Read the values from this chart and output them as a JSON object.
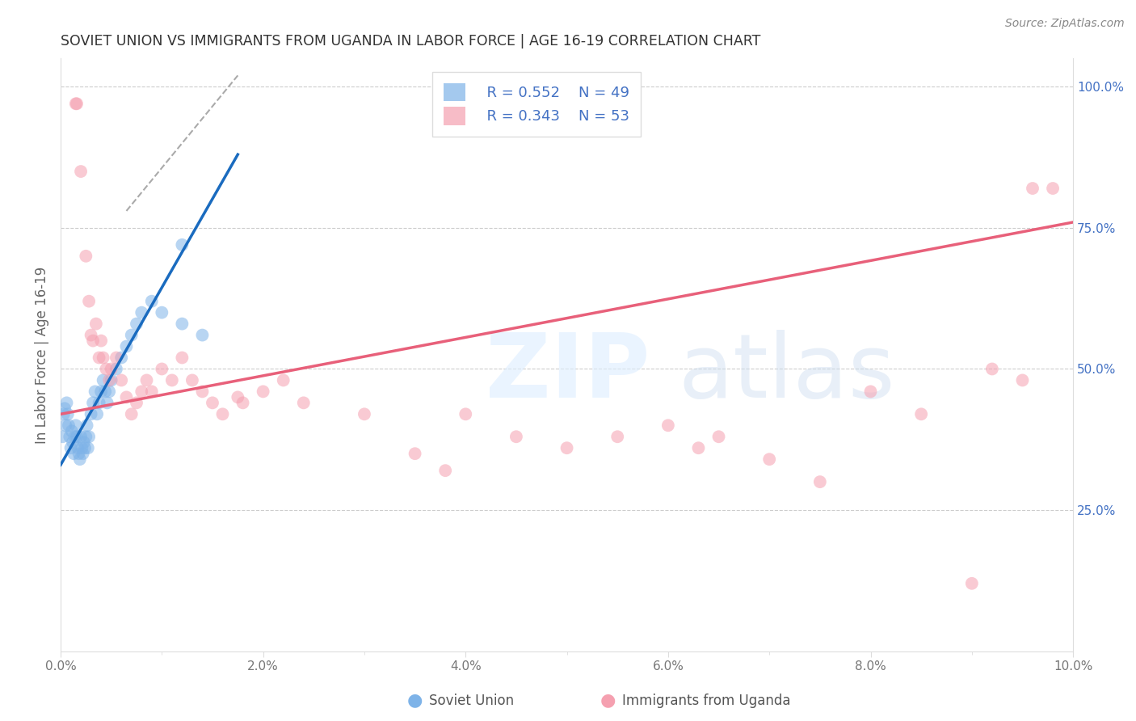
{
  "title": "SOVIET UNION VS IMMIGRANTS FROM UGANDA IN LABOR FORCE | AGE 16-19 CORRELATION CHART",
  "source": "Source: ZipAtlas.com",
  "ylabel": "In Labor Force | Age 16-19",
  "xlim": [
    0.0,
    0.1
  ],
  "ylim": [
    0.0,
    1.05
  ],
  "xticklabels": [
    "0.0%",
    "",
    "2.0%",
    "",
    "4.0%",
    "",
    "6.0%",
    "",
    "8.0%",
    "",
    "10.0%"
  ],
  "xtick_positions": [
    0.0,
    0.01,
    0.02,
    0.03,
    0.04,
    0.05,
    0.06,
    0.07,
    0.08,
    0.09,
    0.1
  ],
  "yticks_right": [
    0.25,
    0.5,
    0.75,
    1.0
  ],
  "yticklabels_right": [
    "25.0%",
    "50.0%",
    "75.0%",
    "100.0%"
  ],
  "legend_r1": "R = 0.552",
  "legend_n1": "N = 49",
  "legend_r2": "R = 0.343",
  "legend_n2": "N = 53",
  "blue_color": "#7eb3e8",
  "pink_color": "#f5a0b0",
  "blue_line_color": "#1a6bbf",
  "pink_line_color": "#e8607a",
  "label1": "Soviet Union",
  "label2": "Immigrants from Uganda",
  "grid_color": "#cccccc",
  "right_tick_color": "#4472c4",
  "blue_scatter_x": [
    0.0002,
    0.0003,
    0.0004,
    0.0005,
    0.0006,
    0.0007,
    0.0008,
    0.0009,
    0.001,
    0.0011,
    0.0012,
    0.0013,
    0.0014,
    0.0015,
    0.0016,
    0.0017,
    0.0018,
    0.0019,
    0.002,
    0.0021,
    0.0022,
    0.0023,
    0.0024,
    0.0025,
    0.0026,
    0.0027,
    0.0028,
    0.003,
    0.0032,
    0.0034,
    0.0036,
    0.0038,
    0.004,
    0.0042,
    0.0044,
    0.0046,
    0.0048,
    0.005,
    0.0055,
    0.006,
    0.0065,
    0.007,
    0.0075,
    0.008,
    0.009,
    0.01,
    0.012,
    0.014,
    0.012
  ],
  "blue_scatter_y": [
    0.38,
    0.42,
    0.43,
    0.4,
    0.44,
    0.42,
    0.4,
    0.38,
    0.36,
    0.39,
    0.37,
    0.35,
    0.38,
    0.4,
    0.38,
    0.36,
    0.35,
    0.34,
    0.38,
    0.36,
    0.35,
    0.37,
    0.36,
    0.38,
    0.4,
    0.36,
    0.38,
    0.42,
    0.44,
    0.46,
    0.42,
    0.44,
    0.46,
    0.48,
    0.46,
    0.44,
    0.46,
    0.48,
    0.5,
    0.52,
    0.54,
    0.56,
    0.58,
    0.6,
    0.62,
    0.6,
    0.58,
    0.56,
    0.72
  ],
  "pink_scatter_x": [
    0.0015,
    0.0016,
    0.002,
    0.0025,
    0.0028,
    0.003,
    0.0032,
    0.0035,
    0.0038,
    0.004,
    0.0042,
    0.0045,
    0.0048,
    0.005,
    0.0055,
    0.006,
    0.0065,
    0.007,
    0.0075,
    0.008,
    0.0085,
    0.009,
    0.01,
    0.011,
    0.012,
    0.013,
    0.014,
    0.015,
    0.016,
    0.0175,
    0.018,
    0.02,
    0.022,
    0.024,
    0.03,
    0.035,
    0.038,
    0.04,
    0.045,
    0.05,
    0.055,
    0.06,
    0.063,
    0.065,
    0.07,
    0.075,
    0.08,
    0.085,
    0.09,
    0.092,
    0.095,
    0.096,
    0.098
  ],
  "pink_scatter_y": [
    0.97,
    0.97,
    0.85,
    0.7,
    0.62,
    0.56,
    0.55,
    0.58,
    0.52,
    0.55,
    0.52,
    0.5,
    0.48,
    0.5,
    0.52,
    0.48,
    0.45,
    0.42,
    0.44,
    0.46,
    0.48,
    0.46,
    0.5,
    0.48,
    0.52,
    0.48,
    0.46,
    0.44,
    0.42,
    0.45,
    0.44,
    0.46,
    0.48,
    0.44,
    0.42,
    0.35,
    0.32,
    0.42,
    0.38,
    0.36,
    0.38,
    0.4,
    0.36,
    0.38,
    0.34,
    0.3,
    0.46,
    0.42,
    0.12,
    0.5,
    0.48,
    0.82,
    0.82
  ],
  "blue_line_x": [
    0.0,
    0.0175
  ],
  "blue_line_y": [
    0.33,
    0.88
  ],
  "pink_line_x": [
    0.0,
    0.1
  ],
  "pink_line_y": [
    0.42,
    0.76
  ],
  "diag_line_x": [
    0.0065,
    0.0175
  ],
  "diag_line_y": [
    0.78,
    1.02
  ]
}
